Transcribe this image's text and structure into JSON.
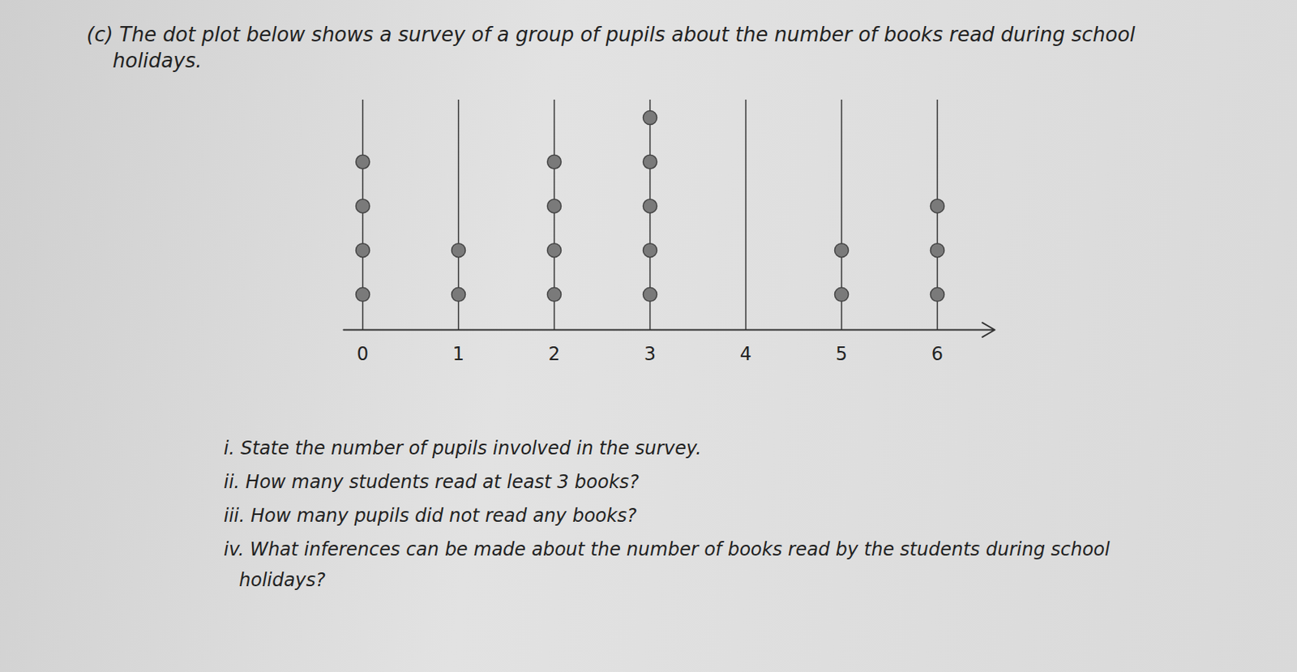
{
  "chart_data": {
    "type": "dot_plot",
    "title": "(c) The dot plot below shows a survey of a group of pupils about the number of books read during school holidays.",
    "x": [
      0,
      1,
      2,
      3,
      4,
      5,
      6
    ],
    "values": [
      4,
      2,
      4,
      5,
      0,
      2,
      3
    ],
    "color": "#7a7a7a",
    "xlim": [
      -0.2,
      6.6
    ],
    "xticks": [
      0,
      1,
      2,
      3,
      4,
      5,
      6
    ],
    "tick_labels": "x",
    "grid": false,
    "annotations": [
      "i. State the number of pupils involved in the survey.",
      "ii. How many students read at least 3 books?",
      "iii. How many pupils did not read any books?",
      "iv. What inferences can be made about the number of books read by the students during school holidays?"
    ]
  }
}
